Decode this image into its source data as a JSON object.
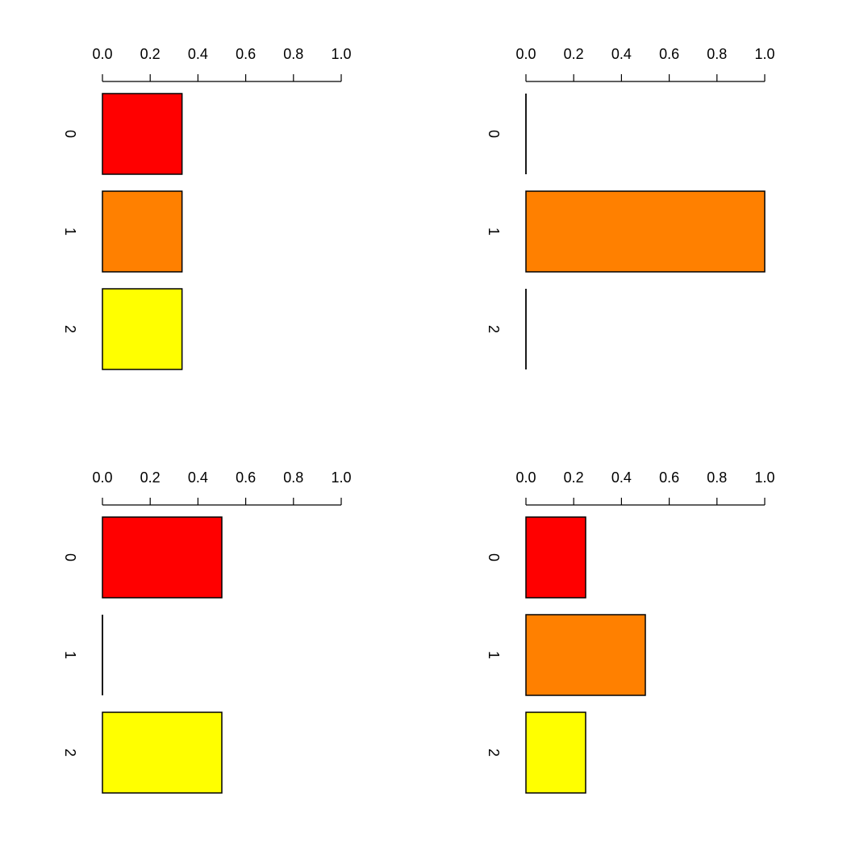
{
  "chart_data": [
    {
      "type": "bar",
      "orientation": "horizontal",
      "categories": [
        "0",
        "1",
        "2"
      ],
      "values": [
        0.3333,
        0.3333,
        0.3333
      ],
      "colors": [
        "#ff0000",
        "#ff8000",
        "#ffff00"
      ],
      "xlim": [
        0,
        1
      ],
      "ticks": [
        "0.0",
        "0.2",
        "0.4",
        "0.6",
        "0.8",
        "1.0"
      ],
      "axis_position": "top",
      "title": "",
      "xlabel": "",
      "ylabel": ""
    },
    {
      "type": "bar",
      "orientation": "horizontal",
      "categories": [
        "0",
        "1",
        "2"
      ],
      "values": [
        0,
        1,
        0
      ],
      "colors": [
        "#ff0000",
        "#ff8000",
        "#ffff00"
      ],
      "xlim": [
        0,
        1
      ],
      "ticks": [
        "0.0",
        "0.2",
        "0.4",
        "0.6",
        "0.8",
        "1.0"
      ],
      "axis_position": "top",
      "title": "",
      "xlabel": "",
      "ylabel": ""
    },
    {
      "type": "bar",
      "orientation": "horizontal",
      "categories": [
        "0",
        "1",
        "2"
      ],
      "values": [
        0.5,
        0,
        0.5
      ],
      "colors": [
        "#ff0000",
        "#ff8000",
        "#ffff00"
      ],
      "xlim": [
        0,
        1
      ],
      "ticks": [
        "0.0",
        "0.2",
        "0.4",
        "0.6",
        "0.8",
        "1.0"
      ],
      "axis_position": "top",
      "title": "",
      "xlabel": "",
      "ylabel": ""
    },
    {
      "type": "bar",
      "orientation": "horizontal",
      "categories": [
        "0",
        "1",
        "2"
      ],
      "values": [
        0.25,
        0.5,
        0.25
      ],
      "colors": [
        "#ff0000",
        "#ff8000",
        "#ffff00"
      ],
      "xlim": [
        0,
        1
      ],
      "ticks": [
        "0.0",
        "0.2",
        "0.4",
        "0.6",
        "0.8",
        "1.0"
      ],
      "axis_position": "top",
      "title": "",
      "xlabel": "",
      "ylabel": ""
    }
  ]
}
